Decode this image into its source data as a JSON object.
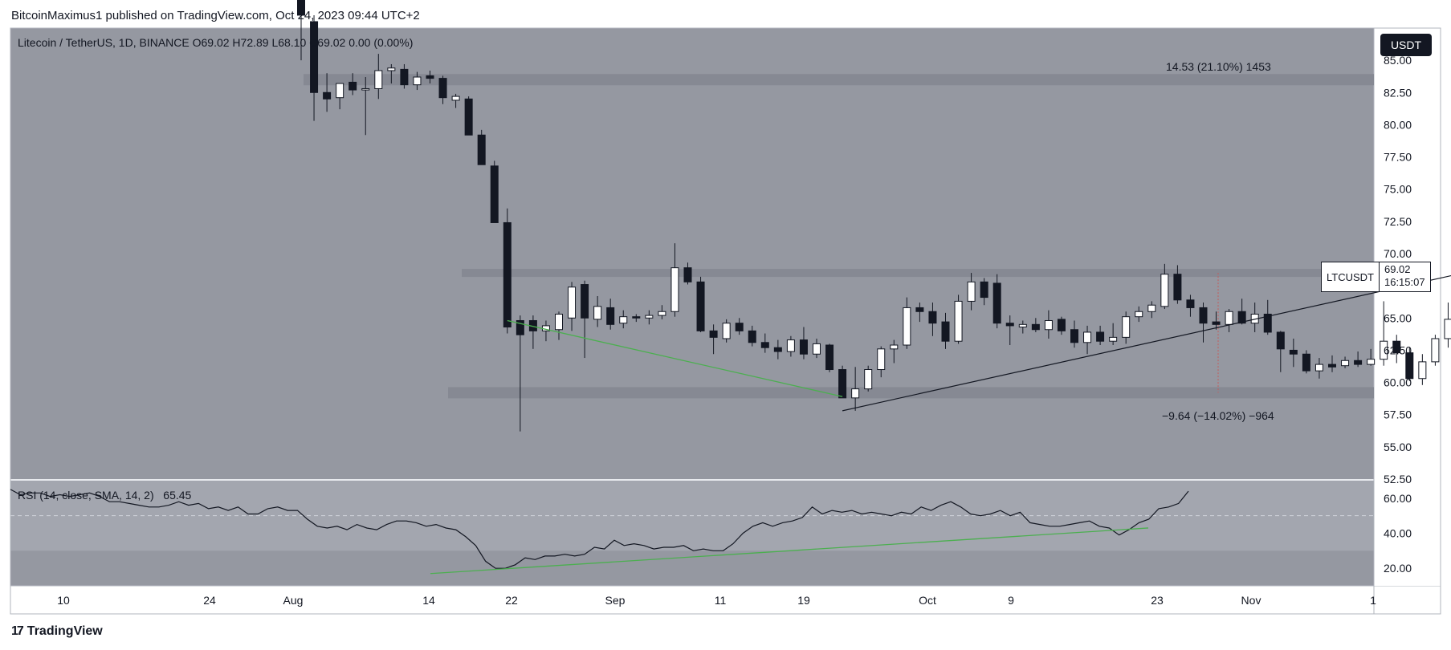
{
  "header": {
    "publisher": "BitcoinMaximus1 published on TradingView.com, Oct 24, 2023 09:44 UTC+2"
  },
  "footer": {
    "brand": "TradingView"
  },
  "legend": {
    "symbol": "Litecoin / TetherUS, 1D, BINANCE",
    "ohlc": "O69.02  H72.89  L68.10  C69.02  0.00 (0.00%)"
  },
  "currency_button": "USDT",
  "price_tag": {
    "symbol": "LTCUSDT",
    "price": "69.02",
    "countdown": "16:15:07"
  },
  "rsi_legend": {
    "label": "RSI (14, close, SMA, 14, 2)",
    "value": "65.45"
  },
  "annotations": {
    "upper_measure": "14.53 (21.10%) 1453",
    "lower_measure": "−9.64 (−14.02%) −964"
  },
  "colors": {
    "panel_bg": "#9598a1",
    "band_bg": "#868993",
    "rsi_band_bg": "#a3a6af",
    "up_candle": "#ffffff",
    "down_candle": "#131722",
    "green_trendline": "#4caf50",
    "black_trendline": "#131722",
    "text": "#131722"
  },
  "chart_data": {
    "type": "candlestick",
    "price_axis": {
      "ticks": [
        "85.00",
        "82.50",
        "80.00",
        "77.50",
        "75.00",
        "72.50",
        "70.00",
        "67.50",
        "65.00",
        "62.50",
        "60.00",
        "57.50",
        "55.00",
        "52.50"
      ],
      "range": [
        52.5,
        87.5
      ]
    },
    "rsi_axis": {
      "ticks": [
        "60.00",
        "40.00",
        "20.00"
      ],
      "range": [
        10,
        70
      ],
      "band": [
        30,
        70
      ],
      "midline": 50
    },
    "time_axis": {
      "ticks": [
        "10",
        "24",
        "Aug",
        "14",
        "22",
        "Sep",
        "11",
        "19",
        "Oct",
        "9",
        "23",
        "Nov",
        "1"
      ]
    },
    "candles": [
      {
        "t": "Jul 31",
        "o": 90,
        "h": 94,
        "l": 85,
        "c": 88.5
      },
      {
        "t": "Aug 1",
        "o": 88,
        "h": 88.5,
        "l": 80.3,
        "c": 82.5
      },
      {
        "t": "Aug 2",
        "o": 82.5,
        "h": 84,
        "l": 81,
        "c": 82
      },
      {
        "t": "Aug 3",
        "o": 82.1,
        "h": 83.2,
        "l": 81.2,
        "c": 83.2
      },
      {
        "t": "Aug 4",
        "o": 83.3,
        "h": 84,
        "l": 82.3,
        "c": 82.7
      },
      {
        "t": "Aug 5",
        "o": 82.7,
        "h": 83.7,
        "l": 79.2,
        "c": 82.8
      },
      {
        "t": "Aug 6",
        "o": 82.8,
        "h": 85.5,
        "l": 82,
        "c": 84.2
      },
      {
        "t": "Aug 7",
        "o": 84.2,
        "h": 84.7,
        "l": 83.2,
        "c": 84.4
      },
      {
        "t": "Aug 8",
        "o": 84.3,
        "h": 84.7,
        "l": 82.8,
        "c": 83.1
      },
      {
        "t": "Aug 9",
        "o": 83.1,
        "h": 84.1,
        "l": 82.7,
        "c": 83.7
      },
      {
        "t": "Aug 10",
        "o": 83.8,
        "h": 84.2,
        "l": 83.2,
        "c": 83.6
      },
      {
        "t": "Aug 11",
        "o": 83.6,
        "h": 83.8,
        "l": 81.6,
        "c": 82.1
      },
      {
        "t": "Aug 12",
        "o": 81.9,
        "h": 82.4,
        "l": 81.3,
        "c": 82.2
      },
      {
        "t": "Aug 13",
        "o": 82,
        "h": 82.2,
        "l": 79.2,
        "c": 79.2
      },
      {
        "t": "Aug 14",
        "o": 79.2,
        "h": 79.6,
        "l": 76.9,
        "c": 76.9
      },
      {
        "t": "Aug 15",
        "o": 76.8,
        "h": 77.2,
        "l": 72.4,
        "c": 72.4
      },
      {
        "t": "Aug 16",
        "o": 72.4,
        "h": 73.5,
        "l": 63.8,
        "c": 64.3
      },
      {
        "t": "Aug 17",
        "o": 64.8,
        "h": 65.2,
        "l": 56.2,
        "c": 63.7
      },
      {
        "t": "Aug 18",
        "o": 64.8,
        "h": 65.2,
        "l": 62.6,
        "c": 64
      },
      {
        "t": "Aug 19",
        "o": 64,
        "h": 64.8,
        "l": 63.2,
        "c": 64.4
      },
      {
        "t": "Aug 20",
        "o": 64.1,
        "h": 65.5,
        "l": 63.3,
        "c": 65.3
      },
      {
        "t": "Aug 21",
        "o": 65,
        "h": 67.8,
        "l": 64,
        "c": 67.4
      },
      {
        "t": "Aug 22",
        "o": 67.6,
        "h": 67.9,
        "l": 61.9,
        "c": 65
      },
      {
        "t": "Aug 23",
        "o": 64.9,
        "h": 66.7,
        "l": 64.3,
        "c": 65.9
      },
      {
        "t": "Aug 24",
        "o": 65.8,
        "h": 66.5,
        "l": 64.1,
        "c": 64.5
      },
      {
        "t": "Aug 25",
        "o": 64.6,
        "h": 65.6,
        "l": 64.2,
        "c": 65.1
      },
      {
        "t": "Aug 26",
        "o": 65.1,
        "h": 65.3,
        "l": 64.7,
        "c": 65
      },
      {
        "t": "Aug 27",
        "o": 65,
        "h": 65.6,
        "l": 64.5,
        "c": 65.2
      },
      {
        "t": "Aug 28",
        "o": 65.2,
        "h": 66,
        "l": 64.9,
        "c": 65.5
      },
      {
        "t": "Aug 29",
        "o": 65.5,
        "h": 70.8,
        "l": 65.1,
        "c": 68.9
      },
      {
        "t": "Aug 30",
        "o": 68.9,
        "h": 69.3,
        "l": 67.6,
        "c": 67.8
      },
      {
        "t": "Aug 31",
        "o": 67.8,
        "h": 68.2,
        "l": 63.9,
        "c": 64
      },
      {
        "t": "Sep 1",
        "o": 64,
        "h": 64.5,
        "l": 62.2,
        "c": 63.5
      },
      {
        "t": "Sep 2",
        "o": 63.4,
        "h": 64.9,
        "l": 63.1,
        "c": 64.6
      },
      {
        "t": "Sep 3",
        "o": 64.6,
        "h": 65,
        "l": 63.7,
        "c": 64
      },
      {
        "t": "Sep 4",
        "o": 64,
        "h": 64.4,
        "l": 62.8,
        "c": 63.1
      },
      {
        "t": "Sep 5",
        "o": 63.1,
        "h": 63.8,
        "l": 62.3,
        "c": 62.7
      },
      {
        "t": "Sep 6",
        "o": 62.7,
        "h": 63.3,
        "l": 61.8,
        "c": 62.4
      },
      {
        "t": "Sep 7",
        "o": 62.4,
        "h": 63.6,
        "l": 62,
        "c": 63.3
      },
      {
        "t": "Sep 8",
        "o": 63.3,
        "h": 64.3,
        "l": 61.8,
        "c": 62.2
      },
      {
        "t": "Sep 9",
        "o": 62.2,
        "h": 63.4,
        "l": 61.9,
        "c": 63
      },
      {
        "t": "Sep 10",
        "o": 62.9,
        "h": 63,
        "l": 60.8,
        "c": 61
      },
      {
        "t": "Sep 11",
        "o": 61,
        "h": 61.3,
        "l": 58.8,
        "c": 58.8
      },
      {
        "t": "Sep 12",
        "o": 58.8,
        "h": 61.2,
        "l": 57.8,
        "c": 59.5
      },
      {
        "t": "Sep 13",
        "o": 59.5,
        "h": 61.3,
        "l": 59.3,
        "c": 61
      },
      {
        "t": "Sep 14",
        "o": 61,
        "h": 62.8,
        "l": 60.4,
        "c": 62.6
      },
      {
        "t": "Sep 15",
        "o": 62.6,
        "h": 63.3,
        "l": 61.5,
        "c": 62.9
      },
      {
        "t": "Sep 16",
        "o": 62.9,
        "h": 66.6,
        "l": 62.6,
        "c": 65.8
      },
      {
        "t": "Sep 17",
        "o": 65.8,
        "h": 66.2,
        "l": 64.7,
        "c": 65.5
      },
      {
        "t": "Sep 18",
        "o": 65.5,
        "h": 66.2,
        "l": 63.6,
        "c": 64.6
      },
      {
        "t": "Sep 19",
        "o": 64.7,
        "h": 65.4,
        "l": 62.6,
        "c": 63.2
      },
      {
        "t": "Sep 20",
        "o": 63.2,
        "h": 66.8,
        "l": 63,
        "c": 66.3
      },
      {
        "t": "Sep 21",
        "o": 66.3,
        "h": 68.5,
        "l": 65.6,
        "c": 67.8
      },
      {
        "t": "Sep 22",
        "o": 67.8,
        "h": 68.1,
        "l": 66,
        "c": 66.6
      },
      {
        "t": "Sep 23",
        "o": 67.7,
        "h": 68.4,
        "l": 64.2,
        "c": 64.6
      },
      {
        "t": "Sep 24",
        "o": 64.6,
        "h": 65.2,
        "l": 62.9,
        "c": 64.4
      },
      {
        "t": "Sep 25",
        "o": 64.3,
        "h": 64.8,
        "l": 63.8,
        "c": 64.5
      },
      {
        "t": "Sep 26",
        "o": 64.5,
        "h": 65,
        "l": 63.9,
        "c": 64.1
      },
      {
        "t": "Sep 27",
        "o": 64.1,
        "h": 65.6,
        "l": 63.4,
        "c": 64.8
      },
      {
        "t": "Sep 28",
        "o": 64.9,
        "h": 65.1,
        "l": 63.7,
        "c": 64
      },
      {
        "t": "Sep 29",
        "o": 64.1,
        "h": 64.8,
        "l": 62.7,
        "c": 63.1
      },
      {
        "t": "Sep 30",
        "o": 63.1,
        "h": 64.4,
        "l": 62.2,
        "c": 63.9
      },
      {
        "t": "Oct 1",
        "o": 63.9,
        "h": 64.4,
        "l": 62.9,
        "c": 63.2
      },
      {
        "t": "Oct 2",
        "o": 63.2,
        "h": 64.6,
        "l": 62.9,
        "c": 63.5
      },
      {
        "t": "Oct 3",
        "o": 63.5,
        "h": 65.5,
        "l": 63,
        "c": 65.1
      },
      {
        "t": "Oct 4",
        "o": 65.1,
        "h": 65.9,
        "l": 64.7,
        "c": 65.5
      },
      {
        "t": "Oct 5",
        "o": 65.5,
        "h": 66.3,
        "l": 65,
        "c": 66
      },
      {
        "t": "Oct 6",
        "o": 65.9,
        "h": 69.2,
        "l": 65.7,
        "c": 68.4
      },
      {
        "t": "Oct 7",
        "o": 68.4,
        "h": 69.1,
        "l": 66.1,
        "c": 66.4
      },
      {
        "t": "Oct 8",
        "o": 66.4,
        "h": 66.8,
        "l": 65.1,
        "c": 65.8
      },
      {
        "t": "Oct 9",
        "o": 65.8,
        "h": 66.2,
        "l": 63.1,
        "c": 64.6
      },
      {
        "t": "Oct 10",
        "o": 64.7,
        "h": 65.5,
        "l": 64.1,
        "c": 64.5
      },
      {
        "t": "Oct 11",
        "o": 64.5,
        "h": 65.7,
        "l": 63.9,
        "c": 65.5
      },
      {
        "t": "Oct 12",
        "o": 65.5,
        "h": 66.5,
        "l": 64.5,
        "c": 64.6
      },
      {
        "t": "Oct 13",
        "o": 64.6,
        "h": 66.2,
        "l": 63.9,
        "c": 65.3
      },
      {
        "t": "Oct 14",
        "o": 65.3,
        "h": 66.4,
        "l": 63.7,
        "c": 63.9
      },
      {
        "t": "Oct 15",
        "o": 63.9,
        "h": 64,
        "l": 60.8,
        "c": 62.6
      },
      {
        "t": "Oct 16",
        "o": 62.5,
        "h": 63.4,
        "l": 61.2,
        "c": 62.2
      },
      {
        "t": "Oct 17",
        "o": 62.2,
        "h": 62.5,
        "l": 60.7,
        "c": 60.9
      },
      {
        "t": "Oct 18",
        "o": 60.9,
        "h": 61.9,
        "l": 60.3,
        "c": 61.4
      },
      {
        "t": "Oct 19",
        "o": 61.4,
        "h": 62.1,
        "l": 60.8,
        "c": 61.2
      },
      {
        "t": "Oct 20",
        "o": 61.3,
        "h": 62,
        "l": 61.1,
        "c": 61.7
      },
      {
        "t": "Oct 21",
        "o": 61.7,
        "h": 62.4,
        "l": 61.2,
        "c": 61.4
      },
      {
        "t": "Oct 22",
        "o": 61.4,
        "h": 62.6,
        "l": 61.3,
        "c": 61.8
      },
      {
        "t": "Oct 23",
        "o": 61.8,
        "h": 66.3,
        "l": 61.3,
        "c": 63.2
      },
      {
        "t": "Oct 24",
        "o": 63.2,
        "h": 63.7,
        "l": 61.5,
        "c": 62.3
      },
      {
        "t": "Oct 25",
        "o": 62.3,
        "h": 62.7,
        "l": 60.1,
        "c": 60.3
      },
      {
        "t": "Oct 26",
        "o": 60.3,
        "h": 62.2,
        "l": 59.8,
        "c": 61.6
      },
      {
        "t": "Oct 27",
        "o": 61.6,
        "h": 63.7,
        "l": 61.3,
        "c": 63.4
      },
      {
        "t": "Oct 28",
        "o": 63.4,
        "h": 66.2,
        "l": 62.7,
        "c": 64.9
      },
      {
        "t": "Oct 29",
        "o": 64.8,
        "h": 66.3,
        "l": 62.9,
        "c": 65.4
      },
      {
        "t": "Oct 30",
        "o": 65.3,
        "h": 70.2,
        "l": 64.8,
        "c": 69
      },
      {
        "t": "Oct 31",
        "o": 69.02,
        "h": 72.89,
        "l": 68.1,
        "c": 69.02
      }
    ],
    "rsi": [
      65,
      62,
      63,
      63,
      61,
      62,
      61,
      62,
      63,
      61,
      58,
      58,
      57,
      56,
      55,
      55,
      56,
      58,
      56,
      57,
      54,
      55,
      53,
      55,
      51,
      51,
      54,
      55,
      53,
      53,
      48,
      44,
      43,
      44,
      42,
      45,
      43,
      42,
      45,
      47,
      47,
      46,
      44,
      45,
      43,
      42,
      38,
      33,
      24,
      20,
      20,
      22,
      26,
      25,
      27,
      27,
      28,
      27,
      28,
      32,
      31,
      36,
      33,
      34,
      33,
      31,
      32,
      32,
      33,
      30,
      31,
      30,
      30,
      34,
      40,
      44,
      46,
      44,
      46,
      47,
      49,
      55,
      51,
      53,
      52,
      53,
      51,
      52,
      51,
      50,
      52,
      51,
      55,
      53,
      56,
      58,
      55,
      51,
      50,
      51,
      53,
      50,
      52,
      46,
      45,
      44,
      44,
      45,
      46,
      47,
      44,
      43,
      39,
      42,
      46,
      48,
      54,
      55,
      57,
      64
    ],
    "sma_note": "",
    "levels": {
      "resistance": 83.5,
      "mid_resistance": 68.5,
      "support": 59.2
    },
    "measure_upper": {
      "change": 14.53,
      "percent": 21.1,
      "ticks": 1453
    },
    "measure_lower": {
      "change": -9.64,
      "percent": -14.02,
      "ticks": -964
    }
  }
}
